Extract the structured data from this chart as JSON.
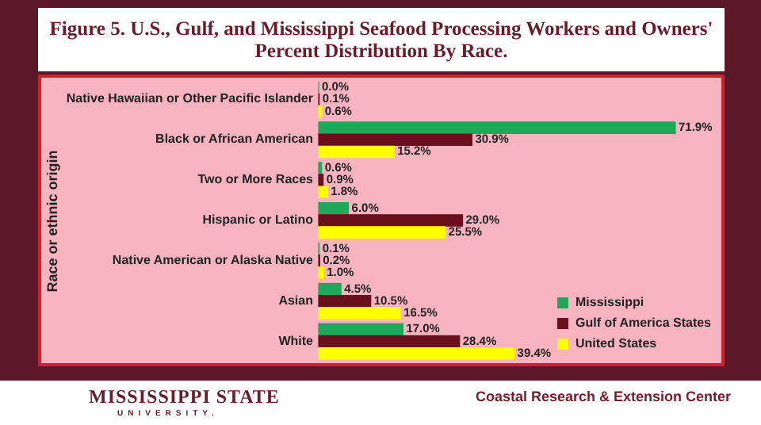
{
  "chart_data": {
    "type": "bar",
    "orientation": "horizontal",
    "title": "Figure 5. U.S., Gulf, and Mississippi Seafood Processing Workers and Owners' Percent Distribution By Race.",
    "ylabel": "Race or ethnic origin",
    "categories": [
      "Native Hawaiian or Other Pacific Islander",
      "Black or African American",
      "Two or More Races",
      "Hispanic or Latino",
      "Native American or Alaska Native",
      "Asian",
      "White"
    ],
    "series": [
      {
        "name": "Mississippi",
        "color": "#1fa85a",
        "values": [
          0.0,
          71.9,
          0.6,
          6.0,
          0.1,
          4.5,
          17.0
        ],
        "value_labels": [
          "0.0%",
          "71.9%",
          "0.6%",
          "6.0%",
          "0.1%",
          "4.5%",
          "17.0%"
        ]
      },
      {
        "name": "Gulf of America States",
        "color": "#6a0f1e",
        "values": [
          0.1,
          30.9,
          0.9,
          29.0,
          0.2,
          10.5,
          28.4
        ],
        "value_labels": [
          "0.1%",
          "30.9%",
          "0.9%",
          "29.0%",
          "0.2%",
          "10.5%",
          "28.4%"
        ]
      },
      {
        "name": "United States",
        "color": "#ffff00",
        "values": [
          0.6,
          15.2,
          1.8,
          25.5,
          1.0,
          16.5,
          39.4
        ],
        "value_labels": [
          "0.6%",
          "15.2%",
          "1.8%",
          "25.5%",
          "1.0%",
          "16.5%",
          "39.4%"
        ]
      }
    ],
    "legend": "bottom right",
    "grid": false,
    "annotations": [
      "MISSISSIPPI STATE",
      "UNIVERSITY.",
      "Coastal Research & Extension Center"
    ]
  }
}
